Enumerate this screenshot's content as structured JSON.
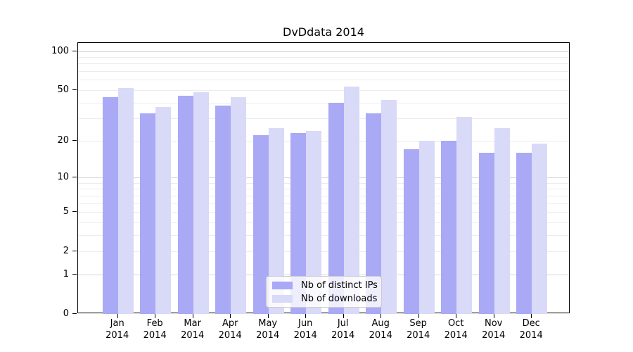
{
  "figure": {
    "background": "#ffffff"
  },
  "chart_data": {
    "type": "bar",
    "title": "DvDdata 2014",
    "categories": [
      "Jan",
      "Feb",
      "Mar",
      "Apr",
      "May",
      "Jun",
      "Jul",
      "Aug",
      "Sep",
      "Oct",
      "Nov",
      "Dec"
    ],
    "category_year": "2014",
    "series": [
      {
        "name": "Nb of distinct IPs",
        "color": "#a9a9f6",
        "values": [
          44,
          33,
          45,
          38,
          22,
          23,
          40,
          33,
          17,
          20,
          16,
          16
        ]
      },
      {
        "name": "Nb of downloads",
        "color": "#d9d9f8",
        "values": [
          52,
          37,
          48,
          44,
          25,
          24,
          53,
          42,
          20,
          31,
          25,
          19
        ]
      }
    ],
    "xlabel": "",
    "ylabel": "",
    "y_axis": {
      "scale": "log1p",
      "tick_values": [
        0,
        1,
        2,
        5,
        10,
        20,
        50,
        100
      ],
      "tick_labels": [
        "0",
        "1",
        "2",
        "5",
        "10",
        "20",
        "50",
        "100"
      ],
      "major_grid_values": [
        1,
        10,
        100
      ],
      "minor_grid_values": [
        2,
        3,
        4,
        5,
        6,
        7,
        8,
        9,
        20,
        30,
        40,
        50,
        60,
        70,
        80,
        90
      ],
      "ylim": [
        0,
        115
      ]
    },
    "grid": true,
    "legend_position": "lower center",
    "colors": {
      "grid_minor": "#ececec",
      "grid_major": "#d5d5d5",
      "axis": "#000000",
      "text": "#000000"
    }
  }
}
